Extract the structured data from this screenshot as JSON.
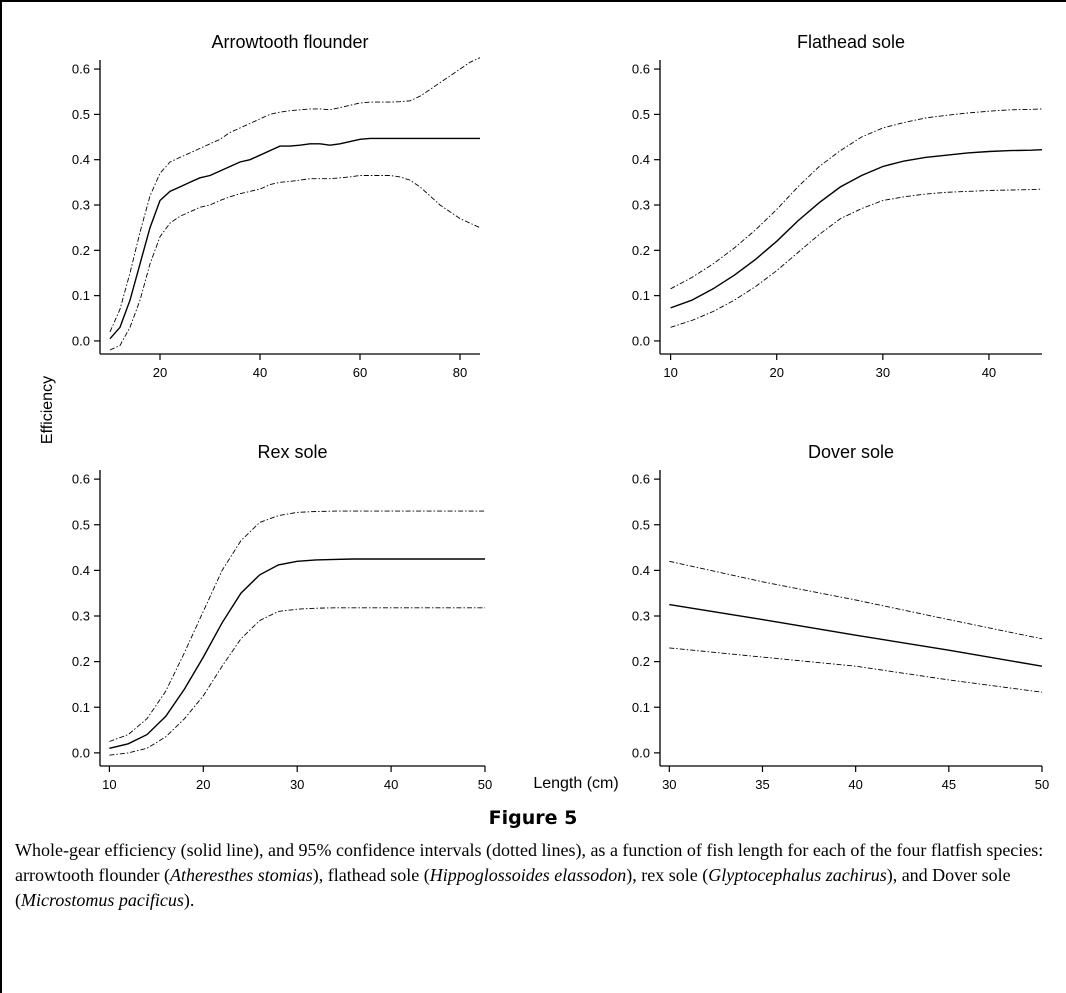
{
  "x_axis_title": "Length (cm)",
  "y_axis_title": "Efficiency",
  "figure_label": "Figure 5",
  "caption": {
    "text1": "Whole-gear efficiency (solid line), and 95% confidence intervals (dotted lines), as a function of fish length for each of the four flatfish species: arrowtooth flounder (",
    "sp1": "Atheresthes stomias",
    "text2": "), flathead sole (",
    "sp2": "Hippoglossoides elassodon",
    "text3": "), rex sole (",
    "sp3": "Glyptocephalus zachirus",
    "text4": "), and Dover sole (",
    "sp4": "Microstomus pacificus",
    "text5": ")."
  },
  "chart_data": [
    {
      "type": "line",
      "title": "Arrowtooth flounder",
      "xlim": [
        8,
        84
      ],
      "ylim": [
        -0.02,
        0.62
      ],
      "xticks": [
        20,
        40,
        60,
        80
      ],
      "yticks": [
        0.0,
        0.1,
        0.2,
        0.3,
        0.4,
        0.5,
        0.6
      ],
      "series": [
        {
          "role": "estimate",
          "x": [
            10,
            12,
            14,
            16,
            18,
            20,
            22,
            24,
            26,
            28,
            30,
            32,
            34,
            36,
            38,
            40,
            42,
            44,
            46,
            48,
            50,
            52,
            54,
            56,
            58,
            60,
            62,
            64,
            66,
            68,
            70,
            72,
            74,
            76,
            78,
            80,
            82,
            84
          ],
          "y": [
            0.005,
            0.03,
            0.09,
            0.17,
            0.25,
            0.31,
            0.33,
            0.34,
            0.35,
            0.36,
            0.365,
            0.375,
            0.385,
            0.395,
            0.4,
            0.41,
            0.42,
            0.43,
            0.43,
            0.432,
            0.435,
            0.435,
            0.432,
            0.435,
            0.44,
            0.445,
            0.447,
            0.447,
            0.447,
            0.447,
            0.447,
            0.447,
            0.447,
            0.447,
            0.447,
            0.447,
            0.447,
            0.447
          ]
        },
        {
          "role": "upper",
          "x": [
            10,
            12,
            14,
            16,
            18,
            20,
            22,
            24,
            26,
            28,
            30,
            32,
            34,
            36,
            38,
            40,
            42,
            44,
            46,
            48,
            50,
            52,
            54,
            56,
            58,
            60,
            62,
            64,
            66,
            68,
            70,
            72,
            74,
            76,
            78,
            80,
            82,
            84
          ],
          "y": [
            0.02,
            0.07,
            0.15,
            0.24,
            0.32,
            0.37,
            0.395,
            0.405,
            0.415,
            0.425,
            0.435,
            0.445,
            0.46,
            0.47,
            0.48,
            0.49,
            0.5,
            0.505,
            0.508,
            0.51,
            0.512,
            0.512,
            0.51,
            0.515,
            0.52,
            0.525,
            0.527,
            0.527,
            0.527,
            0.528,
            0.53,
            0.54,
            0.555,
            0.57,
            0.585,
            0.6,
            0.615,
            0.625
          ]
        },
        {
          "role": "lower",
          "x": [
            10,
            12,
            14,
            16,
            18,
            20,
            22,
            24,
            26,
            28,
            30,
            32,
            34,
            36,
            38,
            40,
            42,
            44,
            46,
            48,
            50,
            52,
            54,
            56,
            58,
            60,
            62,
            64,
            66,
            68,
            70,
            72,
            74,
            76,
            78,
            80,
            82,
            84
          ],
          "y": [
            -0.02,
            -0.01,
            0.03,
            0.09,
            0.17,
            0.23,
            0.26,
            0.275,
            0.285,
            0.295,
            0.3,
            0.31,
            0.318,
            0.325,
            0.33,
            0.335,
            0.345,
            0.35,
            0.352,
            0.355,
            0.358,
            0.358,
            0.358,
            0.36,
            0.362,
            0.365,
            0.365,
            0.365,
            0.365,
            0.362,
            0.355,
            0.34,
            0.32,
            0.3,
            0.285,
            0.27,
            0.26,
            0.25
          ]
        }
      ]
    },
    {
      "type": "line",
      "title": "Flathead sole",
      "xlim": [
        9,
        45
      ],
      "ylim": [
        -0.02,
        0.62
      ],
      "xticks": [
        10,
        20,
        30,
        40
      ],
      "yticks": [
        0.0,
        0.1,
        0.2,
        0.3,
        0.4,
        0.5,
        0.6
      ],
      "series": [
        {
          "role": "estimate",
          "x": [
            10,
            12,
            14,
            16,
            18,
            20,
            22,
            24,
            26,
            28,
            30,
            32,
            34,
            36,
            38,
            40,
            42,
            44,
            45
          ],
          "y": [
            0.073,
            0.09,
            0.115,
            0.145,
            0.18,
            0.22,
            0.265,
            0.305,
            0.34,
            0.365,
            0.385,
            0.397,
            0.405,
            0.41,
            0.415,
            0.418,
            0.42,
            0.421,
            0.422
          ]
        },
        {
          "role": "upper",
          "x": [
            10,
            12,
            14,
            16,
            18,
            20,
            22,
            24,
            26,
            28,
            30,
            32,
            34,
            36,
            38,
            40,
            42,
            44,
            45
          ],
          "y": [
            0.115,
            0.14,
            0.17,
            0.205,
            0.245,
            0.29,
            0.34,
            0.385,
            0.42,
            0.45,
            0.47,
            0.482,
            0.492,
            0.498,
            0.503,
            0.507,
            0.51,
            0.511,
            0.512
          ]
        },
        {
          "role": "lower",
          "x": [
            10,
            12,
            14,
            16,
            18,
            20,
            22,
            24,
            26,
            28,
            30,
            32,
            34,
            36,
            38,
            40,
            42,
            44,
            45
          ],
          "y": [
            0.03,
            0.045,
            0.065,
            0.09,
            0.12,
            0.155,
            0.195,
            0.235,
            0.27,
            0.292,
            0.31,
            0.318,
            0.324,
            0.328,
            0.33,
            0.332,
            0.333,
            0.334,
            0.335
          ]
        }
      ]
    },
    {
      "type": "line",
      "title": "Rex sole",
      "xlim": [
        9,
        50
      ],
      "ylim": [
        -0.02,
        0.62
      ],
      "xticks": [
        10,
        20,
        30,
        40,
        50
      ],
      "yticks": [
        0.0,
        0.1,
        0.2,
        0.3,
        0.4,
        0.5,
        0.6
      ],
      "series": [
        {
          "role": "estimate",
          "x": [
            10,
            12,
            14,
            16,
            18,
            20,
            22,
            24,
            26,
            28,
            30,
            32,
            34,
            36,
            38,
            40,
            42,
            44,
            46,
            48,
            50
          ],
          "y": [
            0.01,
            0.02,
            0.04,
            0.08,
            0.14,
            0.21,
            0.285,
            0.35,
            0.39,
            0.412,
            0.42,
            0.423,
            0.424,
            0.425,
            0.425,
            0.425,
            0.425,
            0.425,
            0.425,
            0.425,
            0.425
          ]
        },
        {
          "role": "upper",
          "x": [
            10,
            12,
            14,
            16,
            18,
            20,
            22,
            24,
            26,
            28,
            30,
            32,
            34,
            36,
            38,
            40,
            42,
            44,
            46,
            48,
            50
          ],
          "y": [
            0.025,
            0.04,
            0.075,
            0.135,
            0.22,
            0.31,
            0.4,
            0.465,
            0.505,
            0.52,
            0.527,
            0.529,
            0.53,
            0.53,
            0.53,
            0.53,
            0.53,
            0.53,
            0.53,
            0.53,
            0.53
          ]
        },
        {
          "role": "lower",
          "x": [
            10,
            12,
            14,
            16,
            18,
            20,
            22,
            24,
            26,
            28,
            30,
            32,
            34,
            36,
            38,
            40,
            42,
            44,
            46,
            48,
            50
          ],
          "y": [
            -0.005,
            0.0,
            0.01,
            0.035,
            0.075,
            0.125,
            0.19,
            0.25,
            0.29,
            0.31,
            0.315,
            0.317,
            0.318,
            0.318,
            0.318,
            0.318,
            0.318,
            0.318,
            0.318,
            0.318,
            0.318
          ]
        }
      ]
    },
    {
      "type": "line",
      "title": "Dover sole",
      "xlim": [
        29.5,
        50
      ],
      "ylim": [
        -0.02,
        0.62
      ],
      "xticks": [
        30,
        35,
        40,
        45,
        50
      ],
      "yticks": [
        0.0,
        0.1,
        0.2,
        0.3,
        0.4,
        0.5,
        0.6
      ],
      "series": [
        {
          "role": "estimate",
          "x": [
            30,
            35,
            40,
            45,
            50
          ],
          "y": [
            0.325,
            0.292,
            0.258,
            0.225,
            0.19
          ]
        },
        {
          "role": "upper",
          "x": [
            30,
            35,
            40,
            45,
            50
          ],
          "y": [
            0.42,
            0.375,
            0.335,
            0.292,
            0.25
          ]
        },
        {
          "role": "lower",
          "x": [
            30,
            35,
            40,
            45,
            50
          ],
          "y": [
            0.23,
            0.21,
            0.19,
            0.16,
            0.133
          ]
        }
      ]
    }
  ]
}
